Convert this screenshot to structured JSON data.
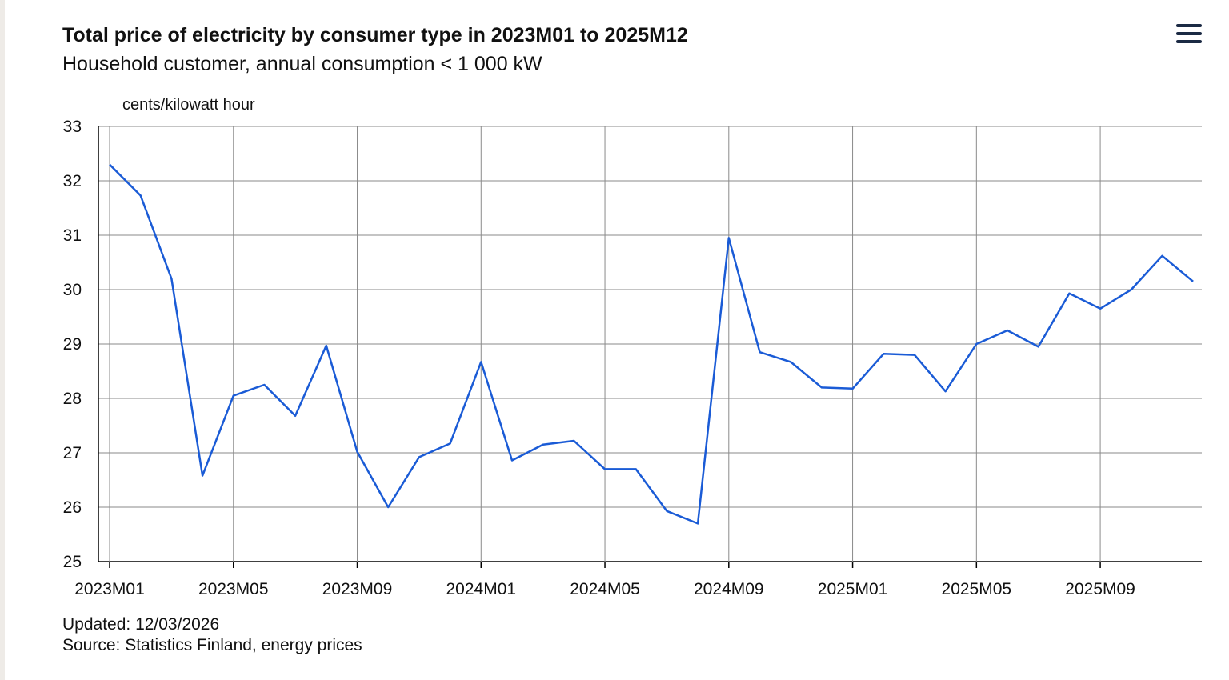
{
  "header": {
    "title": "Total price of electricity by consumer type in 2023M01 to 2025M12",
    "subtitle": "Household customer, annual consumption < 1 000 kW"
  },
  "menu": {
    "icon": "hamburger-menu-icon"
  },
  "chart_data": {
    "type": "line",
    "title": "Total price of electricity by consumer type in 2023M01 to 2025M12",
    "subtitle": "Household customer, annual consumption < 1 000 kW",
    "ylabel": "cents/kilowatt hour",
    "xlabel": "",
    "ylim": [
      25,
      33
    ],
    "yticks": [
      25,
      26,
      27,
      28,
      29,
      30,
      31,
      32,
      33
    ],
    "x": [
      "2023M01",
      "2023M02",
      "2023M03",
      "2023M04",
      "2023M05",
      "2023M06",
      "2023M07",
      "2023M08",
      "2023M09",
      "2023M10",
      "2023M11",
      "2023M12",
      "2024M01",
      "2024M02",
      "2024M03",
      "2024M04",
      "2024M05",
      "2024M06",
      "2024M07",
      "2024M08",
      "2024M09",
      "2024M10",
      "2024M11",
      "2024M12",
      "2025M01",
      "2025M02",
      "2025M03",
      "2025M04",
      "2025M05",
      "2025M06",
      "2025M07",
      "2025M08",
      "2025M09",
      "2025M10",
      "2025M11",
      "2025M12"
    ],
    "xtick_labels": [
      "2023M01",
      "2023M05",
      "2023M09",
      "2024M01",
      "2024M05",
      "2024M09",
      "2025M01",
      "2025M05",
      "2025M09"
    ],
    "series": [
      {
        "color": "#1a5bd6",
        "values": [
          32.3,
          31.73,
          30.2,
          26.58,
          28.05,
          28.25,
          27.68,
          28.97,
          27.02,
          26.0,
          26.92,
          27.17,
          28.67,
          26.86,
          27.15,
          27.22,
          26.7,
          26.7,
          25.93,
          25.7,
          30.95,
          28.85,
          28.67,
          28.2,
          28.18,
          28.82,
          28.8,
          28.13,
          29.0,
          29.25,
          28.95,
          29.93,
          29.65,
          30.0,
          30.62,
          30.15
        ]
      }
    ],
    "grid": true,
    "legend": "none"
  },
  "footer": {
    "updated": "Updated: 12/03/2026",
    "source": "Source: Statistics Finland, energy prices"
  }
}
